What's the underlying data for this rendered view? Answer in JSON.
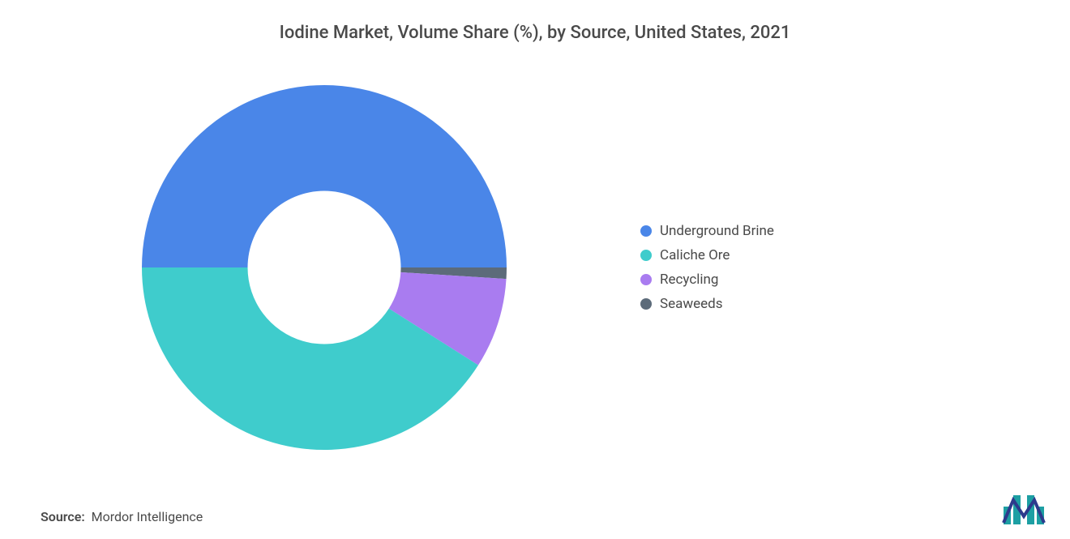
{
  "title": "Iodine Market, Volume Share (%), by Source, United States, 2021",
  "source_label": "Source:",
  "source_text": "Mordor Intelligence",
  "chart": {
    "type": "donut",
    "inner_radius_ratio": 0.42,
    "background_color": "#ffffff",
    "title_fontsize": 22,
    "label_fontsize": 17,
    "series": [
      {
        "name": "Underground Brine",
        "value": 50,
        "color": "#4a86e8"
      },
      {
        "name": "Caliche Ore",
        "value": 41,
        "color": "#3fcccc"
      },
      {
        "name": "Recycling",
        "value": 8,
        "color": "#a97cf0"
      },
      {
        "name": "Seaweeds",
        "value": 1,
        "color": "#5c6b7a"
      }
    ]
  },
  "logo": {
    "bar_color": "#1d9fa3",
    "line_color": "#2d3a8c"
  }
}
